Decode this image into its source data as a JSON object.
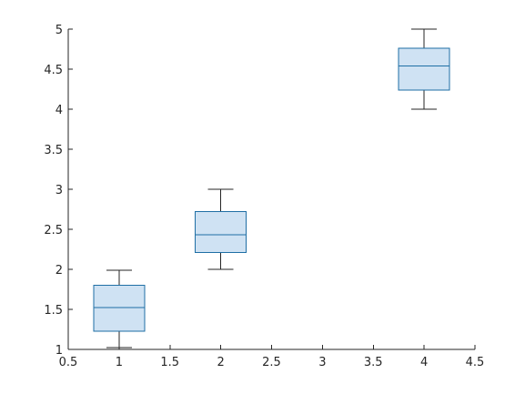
{
  "chart_data": {
    "type": "box",
    "title": "",
    "xlabel": "",
    "ylabel": "",
    "xlim": [
      0.5,
      4.5
    ],
    "ylim": [
      1,
      5
    ],
    "xticks": [
      0.5,
      1,
      1.5,
      2,
      2.5,
      3,
      3.5,
      4,
      4.5
    ],
    "xtick_labels": [
      "0.5",
      "1",
      "1.5",
      "2",
      "2.5",
      "3",
      "3.5",
      "4",
      "4.5"
    ],
    "yticks": [
      1,
      1.5,
      2,
      2.5,
      3,
      3.5,
      4,
      4.5,
      5
    ],
    "ytick_labels": [
      "1",
      "1.5",
      "2",
      "2.5",
      "3",
      "3.5",
      "4",
      "4.5",
      "5"
    ],
    "grid": false,
    "box_fill_color": "#cfe2f3",
    "box_edge_color": "#1f6fa5",
    "whisker_color": "#262626",
    "axis_color": "#262626",
    "boxes": [
      {
        "x": 1,
        "min": 1.02,
        "q1": 1.23,
        "median": 1.52,
        "q3": 1.8,
        "max": 1.99
      },
      {
        "x": 2,
        "min": 2.0,
        "q1": 2.21,
        "median": 2.43,
        "q3": 2.72,
        "max": 3.0
      },
      {
        "x": 4,
        "min": 4.0,
        "q1": 4.24,
        "median": 4.54,
        "q3": 4.76,
        "max": 5.0
      }
    ]
  }
}
